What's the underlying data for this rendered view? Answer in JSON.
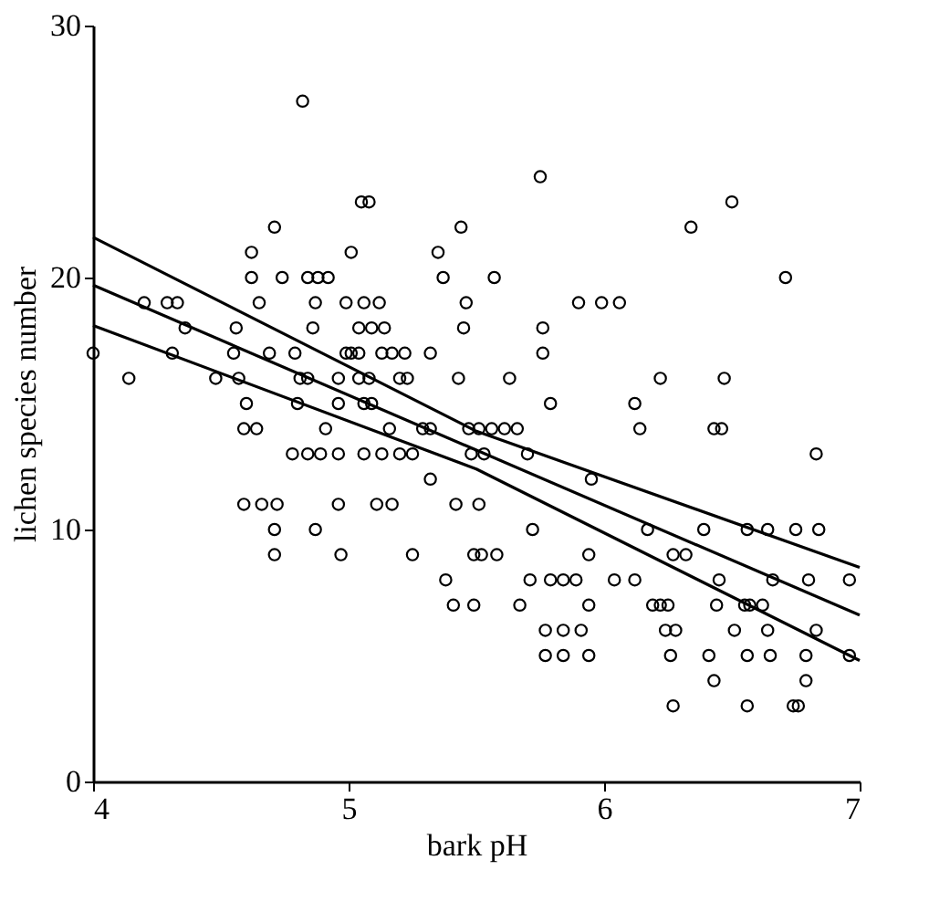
{
  "chart_data": {
    "type": "scatter",
    "xlabel": "bark pH",
    "ylabel": "lichen species number",
    "xlim": [
      4,
      7
    ],
    "ylim": [
      0,
      30
    ],
    "xticks": [
      4,
      5,
      6,
      7
    ],
    "yticks": [
      0,
      10,
      20,
      30
    ],
    "grid": false,
    "marker": "circle",
    "series": [
      {
        "color": "#000000",
        "x": [
          4.82,
          5.75,
          5.05,
          5.08,
          6.5,
          4.71,
          5.44,
          6.34,
          4.62,
          5.01,
          5.35,
          4.62,
          4.74,
          4.84,
          4.88,
          4.92,
          5.37,
          5.57,
          6.71,
          4.2,
          4.29,
          4.33,
          4.65,
          4.87,
          4.99,
          5.06,
          5.12,
          5.46,
          5.9,
          5.99,
          6.06,
          4.36,
          4.56,
          4.86,
          5.04,
          5.09,
          5.14,
          5.45,
          5.76,
          4.0,
          4.31,
          4.55,
          4.69,
          4.79,
          4.99,
          5.01,
          5.04,
          5.13,
          5.17,
          5.22,
          5.32,
          5.76,
          4.14,
          4.48,
          4.57,
          4.81,
          4.84,
          4.96,
          5.04,
          5.08,
          5.2,
          5.23,
          5.43,
          5.63,
          6.22,
          6.47,
          4.6,
          4.8,
          4.96,
          5.06,
          5.09,
          5.79,
          6.12,
          4.59,
          4.64,
          4.91,
          5.16,
          5.29,
          5.32,
          5.47,
          5.51,
          5.56,
          5.61,
          5.66,
          6.14,
          6.43,
          6.46,
          4.78,
          4.84,
          4.89,
          4.96,
          5.06,
          5.13,
          5.2,
          5.25,
          5.48,
          5.53,
          5.7,
          6.83,
          5.32,
          5.95,
          4.59,
          4.66,
          4.72,
          4.96,
          5.11,
          5.17,
          5.42,
          5.51,
          4.71,
          4.87,
          5.72,
          6.17,
          6.39,
          6.56,
          6.64,
          6.75,
          6.84,
          4.71,
          4.97,
          5.25,
          5.49,
          5.52,
          5.58,
          5.94,
          6.27,
          6.32,
          5.38,
          5.71,
          5.79,
          5.84,
          5.89,
          6.04,
          6.12,
          6.45,
          6.66,
          6.8,
          6.96,
          5.41,
          5.49,
          5.67,
          5.94,
          6.19,
          6.22,
          6.25,
          6.44,
          6.55,
          6.57,
          6.62,
          5.77,
          5.84,
          5.91,
          6.24,
          6.28,
          6.51,
          6.64,
          6.83,
          5.77,
          5.84,
          5.94,
          6.26,
          6.41,
          6.56,
          6.65,
          6.79,
          6.96,
          6.43,
          6.79,
          6.27,
          6.56,
          6.74,
          6.76
        ],
        "values": [
          27,
          24,
          23,
          23,
          23,
          22,
          22,
          22,
          21,
          21,
          21,
          20,
          20,
          20,
          20,
          20,
          20,
          20,
          20,
          19,
          19,
          19,
          19,
          19,
          19,
          19,
          19,
          19,
          19,
          19,
          19,
          18,
          18,
          18,
          18,
          18,
          18,
          18,
          18,
          17,
          17,
          17,
          17,
          17,
          17,
          17,
          17,
          17,
          17,
          17,
          17,
          17,
          16,
          16,
          16,
          16,
          16,
          16,
          16,
          16,
          16,
          16,
          16,
          16,
          16,
          16,
          15,
          15,
          15,
          15,
          15,
          15,
          15,
          14,
          14,
          14,
          14,
          14,
          14,
          14,
          14,
          14,
          14,
          14,
          14,
          14,
          14,
          13,
          13,
          13,
          13,
          13,
          13,
          13,
          13,
          13,
          13,
          13,
          13,
          12,
          12,
          11,
          11,
          11,
          11,
          11,
          11,
          11,
          11,
          10,
          10,
          10,
          10,
          10,
          10,
          10,
          10,
          10,
          9,
          9,
          9,
          9,
          9,
          9,
          9,
          9,
          9,
          8,
          8,
          8,
          8,
          8,
          8,
          8,
          8,
          8,
          8,
          8,
          7,
          7,
          7,
          7,
          7,
          7,
          7,
          7,
          7,
          7,
          7,
          6,
          6,
          6,
          6,
          6,
          6,
          6,
          6,
          5,
          5,
          5,
          5,
          5,
          5,
          5,
          5,
          5,
          4,
          4,
          3,
          3,
          3,
          3
        ]
      },
      {
        "type": "line",
        "color": "#000000",
        "marker": "none",
        "x": [
          4,
          5.5,
          7
        ],
        "values": [
          21.6,
          13.9,
          8.5
        ]
      },
      {
        "type": "line",
        "color": "#000000",
        "marker": "none",
        "x": [
          4,
          5.5,
          7
        ],
        "values": [
          19.7,
          13.15,
          6.6
        ]
      },
      {
        "type": "line",
        "color": "#000000",
        "marker": "none",
        "x": [
          4,
          5.5,
          7
        ],
        "values": [
          18.1,
          12.4,
          4.8
        ]
      }
    ]
  }
}
